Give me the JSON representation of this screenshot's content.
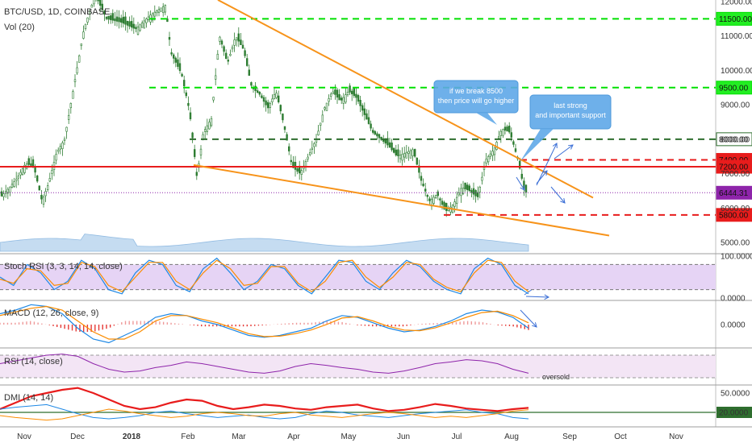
{
  "header": {
    "symbol": "BTC/USD, 1D, COINBASE",
    "volume_label": "Vol (20)"
  },
  "chart_data": {
    "type": "line",
    "main": {
      "ylim": [
        5000,
        12000
      ],
      "y_ticks": [
        5000,
        6000,
        7000,
        8000,
        9000,
        10000,
        11000,
        12000
      ],
      "y_tick_labels": [
        "5000.00",
        "6000.00",
        "7000.00",
        "8000.00",
        "9000.00",
        "10000.00",
        "11000.00",
        "12000.00"
      ],
      "price_path": [
        [
          0,
          6300
        ],
        [
          8,
          6800
        ],
        [
          15,
          6900
        ],
        [
          20,
          7400
        ],
        [
          25,
          7800
        ],
        [
          30,
          7700
        ],
        [
          32,
          6200
        ],
        [
          36,
          6900
        ],
        [
          42,
          7400
        ],
        [
          46,
          7200
        ],
        [
          50,
          7000
        ],
        [
          52,
          6100
        ],
        [
          55,
          6600
        ],
        [
          58,
          7100
        ],
        [
          65,
          7700
        ],
        [
          70,
          8100
        ],
        [
          76,
          8200
        ],
        [
          80,
          8900
        ],
        [
          84,
          10200
        ],
        [
          90,
          11200
        ],
        [
          96,
          11500
        ],
        [
          100,
          12000
        ]
      ],
      "horizontal_levels": [
        {
          "value": 11500,
          "label": "11500.00",
          "color": "#00e000",
          "style": "dashed"
        },
        {
          "value": 9500,
          "label": "9500.00",
          "color": "#00e000",
          "style": "dashed"
        },
        {
          "value": 8000,
          "label": "8000.00",
          "color": "#2e6e2e",
          "style": "dashed"
        },
        {
          "value": 7400,
          "label": "7400.00",
          "color": "#e81c1c",
          "style": "dashed"
        },
        {
          "value": 7200,
          "label": "7200.00",
          "color": "#e81c1c",
          "style": "solid"
        },
        {
          "value": 6444.31,
          "label": "6444.31",
          "color": "#8e24aa",
          "style": "dotted"
        },
        {
          "value": 5800,
          "label": "5800.00",
          "color": "#e81c1c",
          "style": "dashed"
        }
      ],
      "trendlines": [
        {
          "name": "upper",
          "from": [
            270,
            12050
          ],
          "to": [
            735,
            6300
          ],
          "color": "#f7931a"
        },
        {
          "name": "lower",
          "from": [
            240,
            7250
          ],
          "to": [
            755,
            5200
          ],
          "color": "#f7931a"
        }
      ],
      "annotations": [
        {
          "text_lines": [
            "if we break 8500",
            "then price will go higher"
          ],
          "anchor": [
            590,
            8500
          ]
        },
        {
          "text_lines": [
            "last strong",
            "and important support"
          ],
          "anchor": [
            645,
            7400
          ]
        }
      ]
    },
    "indicators": [
      {
        "name": "Stoch RSI",
        "label": "Stoch RSI (3, 3, 14, 14, close)",
        "ylim": [
          0,
          100
        ],
        "ticks": [
          0,
          100
        ],
        "tick_labels": [
          "0.0000",
          "100.0000"
        ],
        "band": [
          20,
          80
        ],
        "series": [
          {
            "values": [
              50,
              30,
              80,
              60,
              20,
              40,
              90,
              70,
              20,
              10,
              60,
              90,
              80,
              30,
              15,
              70,
              95,
              60,
              20,
              40,
              80,
              70,
              30,
              10,
              50,
              90,
              85,
              40,
              20,
              60,
              90,
              75,
              40,
              20,
              10,
              70,
              95,
              80,
              30,
              10
            ]
          },
          {
            "values": [
              45,
              35,
              70,
              65,
              30,
              35,
              85,
              75,
              30,
              15,
              50,
              85,
              85,
              40,
              20,
              60,
              90,
              70,
              30,
              35,
              75,
              75,
              35,
              15,
              40,
              85,
              90,
              50,
              25,
              50,
              85,
              80,
              45,
              25,
              15,
              60,
              90,
              85,
              40,
              15
            ]
          }
        ]
      },
      {
        "name": "MACD",
        "label": "MACD (12, 26, close, 9)",
        "ylim": [
          -600,
          600
        ],
        "ticks": [
          0
        ],
        "tick_labels": [
          "0.0000"
        ],
        "series": [
          {
            "values": [
              300,
              400,
              550,
              500,
              300,
              -100,
              -400,
              -500,
              -300,
              -100,
              200,
              300,
              250,
              100,
              0,
              -150,
              -300,
              -350,
              -300,
              -200,
              -100,
              100,
              250,
              200,
              50,
              -100,
              -200,
              -150,
              -50,
              100,
              300,
              400,
              350,
              200,
              -100
            ]
          },
          {
            "values": [
              250,
              350,
              450,
              500,
              400,
              100,
              -200,
              -400,
              -400,
              -200,
              100,
              250,
              250,
              150,
              50,
              -100,
              -250,
              -330,
              -320,
              -250,
              -150,
              0,
              180,
              220,
              100,
              -50,
              -150,
              -170,
              -90,
              50,
              200,
              330,
              370,
              250,
              50
            ]
          }
        ]
      },
      {
        "name": "RSI",
        "label": "RSI (14, close)",
        "ylim": [
          20,
          80
        ],
        "ticks": [],
        "tick_labels": [],
        "band": [
          30,
          70
        ],
        "note": "oversold",
        "series": [
          {
            "values": [
              55,
              60,
              65,
              70,
              72,
              68,
              55,
              45,
              40,
              42,
              48,
              52,
              58,
              55,
              50,
              45,
              40,
              38,
              42,
              50,
              55,
              52,
              48,
              45,
              40,
              38,
              42,
              48,
              55,
              58,
              62,
              60,
              55,
              45,
              38
            ]
          }
        ]
      },
      {
        "name": "DMI",
        "label": "DMI (14, 14)",
        "ylim": [
          0,
          60
        ],
        "ticks": [
          20,
          50
        ],
        "tick_labels": [
          "20.0000",
          "50.0000"
        ],
        "level": {
          "value": 20,
          "color": "#2e6e2e"
        },
        "series": [
          {
            "values": [
              25,
              35,
              45,
              50,
              55,
              58,
              50,
              40,
              30,
              25,
              28,
              35,
              40,
              38,
              30,
              25,
              28,
              32,
              30,
              26,
              24,
              28,
              30,
              32,
              26,
              22,
              24,
              28,
              33,
              30,
              26,
              24,
              22,
              25,
              27
            ]
          },
          {
            "values": [
              25,
              28,
              30,
              32,
              25,
              18,
              12,
              10,
              12,
              15,
              20,
              22,
              18,
              15,
              12,
              14,
              16,
              12,
              10,
              12,
              18,
              22,
              20,
              16,
              14,
              12,
              15,
              18,
              20,
              22,
              24,
              20,
              18,
              12,
              10
            ]
          },
          {
            "values": [
              15,
              12,
              10,
              8,
              10,
              15,
              20,
              25,
              22,
              18,
              15,
              12,
              14,
              18,
              20,
              18,
              15,
              14,
              18,
              20,
              16,
              14,
              12,
              15,
              18,
              20,
              18,
              15,
              12,
              14,
              12,
              15,
              18,
              22,
              24
            ]
          }
        ]
      }
    ],
    "x_tick_labels": [
      "Nov",
      "Dec",
      "2018",
      "Feb",
      "Mar",
      "Apr",
      "May",
      "Jun",
      "Jul",
      "Aug",
      "Sep",
      "Oct",
      "Nov"
    ]
  },
  "colors": {
    "up": "#26a69a",
    "down": "#ef5350",
    "candle": "#2e7d32",
    "trend": "#f7931a",
    "callout": "#5fa8e8",
    "stoch_k": "#1e88e5",
    "stoch_d": "#fb8c00",
    "macd": "#1e88e5",
    "signal": "#fb8c00",
    "rsi": "#8e24aa",
    "adx": "#e81c1c",
    "dip": "#1e88e5",
    "dim": "#fb8c00"
  }
}
